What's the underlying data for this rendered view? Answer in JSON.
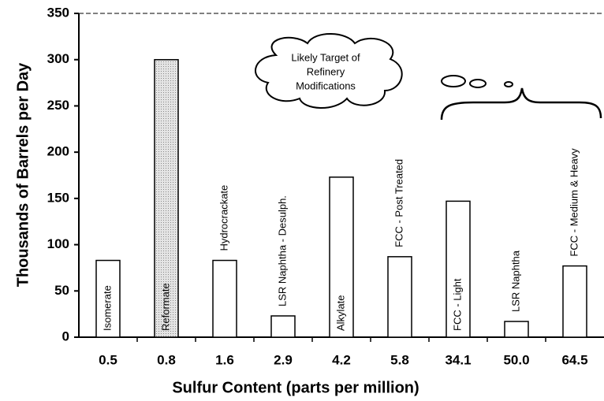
{
  "chart_data": {
    "type": "bar",
    "xlabel": "Sulfur Content (parts per million)",
    "ylabel": "Thousands of Barrels per Day",
    "categories": [
      "0.5",
      "0.8",
      "1.6",
      "2.9",
      "4.2",
      "5.8",
      "34.1",
      "50.0",
      "64.5"
    ],
    "bar_labels": [
      "Isomerate",
      "Reformate",
      "Hydrocrackate",
      "LSR Naphtha - Desulph.",
      "Alkylate",
      "FCC - Post Treated",
      "FCC - Light",
      "LSR Naphtha",
      "FCC - Medium & Heavy"
    ],
    "values": [
      83,
      300,
      83,
      23,
      173,
      87,
      147,
      17,
      77
    ],
    "colors": [
      "#ffffff",
      "#d8d8d8",
      "#ffffff",
      "#ffffff",
      "#ffffff",
      "#ffffff",
      "#ffffff",
      "#ffffff",
      "#ffffff"
    ],
    "ylim": [
      0,
      350
    ],
    "yticks": [
      0,
      50,
      100,
      150,
      200,
      250,
      300,
      350
    ],
    "annotation": [
      "Likely Target of",
      "Refinery",
      "Modifications"
    ]
  }
}
